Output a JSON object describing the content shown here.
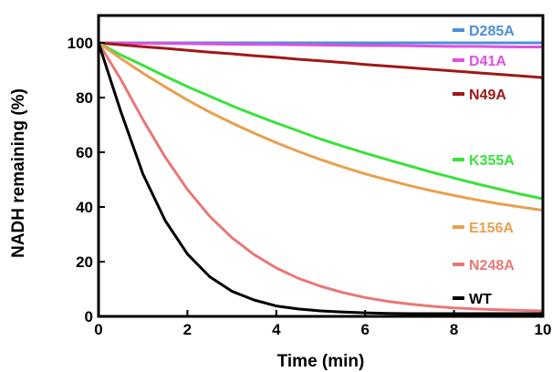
{
  "chart_data": {
    "type": "line",
    "title": "",
    "xlabel": "Time (min)",
    "ylabel": "NADH remaining (%)",
    "xlim": [
      0,
      10
    ],
    "ylim": [
      0,
      110
    ],
    "x_ticks": [
      0,
      2,
      4,
      6,
      8,
      10
    ],
    "y_ticks": [
      0,
      20,
      40,
      60,
      80,
      100
    ],
    "grid": false,
    "legend_position": "right, inside plot",
    "x": [
      0,
      0.5,
      1,
      1.5,
      2,
      2.5,
      3,
      3.5,
      4,
      4.5,
      5,
      5.5,
      6,
      6.5,
      7,
      7.5,
      8,
      8.5,
      9,
      9.5,
      10
    ],
    "series": [
      {
        "name": "D285A",
        "color": "#4a8fd8",
        "values": [
          100,
          100,
          100,
          100,
          100,
          100,
          100,
          100,
          100,
          100,
          100,
          100,
          100,
          100,
          100,
          100,
          100,
          100,
          100,
          100,
          100
        ]
      },
      {
        "name": "D41A",
        "color": "#e050e0",
        "values": [
          100,
          99.9,
          99.8,
          99.8,
          99.7,
          99.6,
          99.5,
          99.4,
          99.4,
          99.3,
          99.2,
          99.1,
          99.0,
          99.0,
          98.9,
          98.8,
          98.7,
          98.7,
          98.6,
          98.5,
          98.5
        ]
      },
      {
        "name": "N49A",
        "color": "#a01818",
        "values": [
          100,
          99.3,
          98.6,
          98.0,
          97.3,
          96.6,
          96.0,
          95.3,
          94.7,
          94.0,
          93.4,
          92.8,
          92.1,
          91.5,
          90.9,
          90.3,
          89.7,
          89.1,
          88.5,
          87.9,
          87.3
        ]
      },
      {
        "name": "K355A",
        "color": "#3ae23a",
        "values": [
          100,
          95.6,
          91.8,
          87.8,
          84.0,
          80.5,
          77.0,
          73.8,
          70.7,
          67.8,
          64.8,
          62.2,
          59.7,
          57.3,
          55.0,
          52.7,
          50.6,
          48.5,
          46.6,
          44.7,
          43.0
        ]
      },
      {
        "name": "E156A",
        "color": "#e8a050",
        "values": [
          100,
          94.3,
          88.9,
          83.9,
          79.1,
          74.7,
          70.7,
          67.0,
          63.5,
          60.3,
          57.3,
          54.6,
          52.1,
          49.9,
          47.8,
          45.9,
          44.2,
          42.6,
          41.2,
          40.0,
          38.8
        ]
      },
      {
        "name": "N248A",
        "color": "#e87878",
        "values": [
          100,
          86.7,
          71.9,
          58.2,
          46.4,
          36.6,
          28.8,
          22.6,
          17.7,
          13.9,
          11.0,
          8.7,
          6.9,
          5.5,
          4.5,
          3.7,
          3.1,
          2.7,
          2.4,
          2.2,
          2.0
        ]
      },
      {
        "name": "WT",
        "color": "#000000",
        "values": [
          100,
          75.0,
          52.0,
          35.0,
          22.8,
          14.5,
          9.2,
          6.0,
          3.8,
          2.7,
          2.0,
          1.6,
          1.3,
          1.1,
          1.0,
          1.0,
          1.0,
          1.0,
          1.0,
          1.0,
          1.0
        ]
      }
    ]
  }
}
